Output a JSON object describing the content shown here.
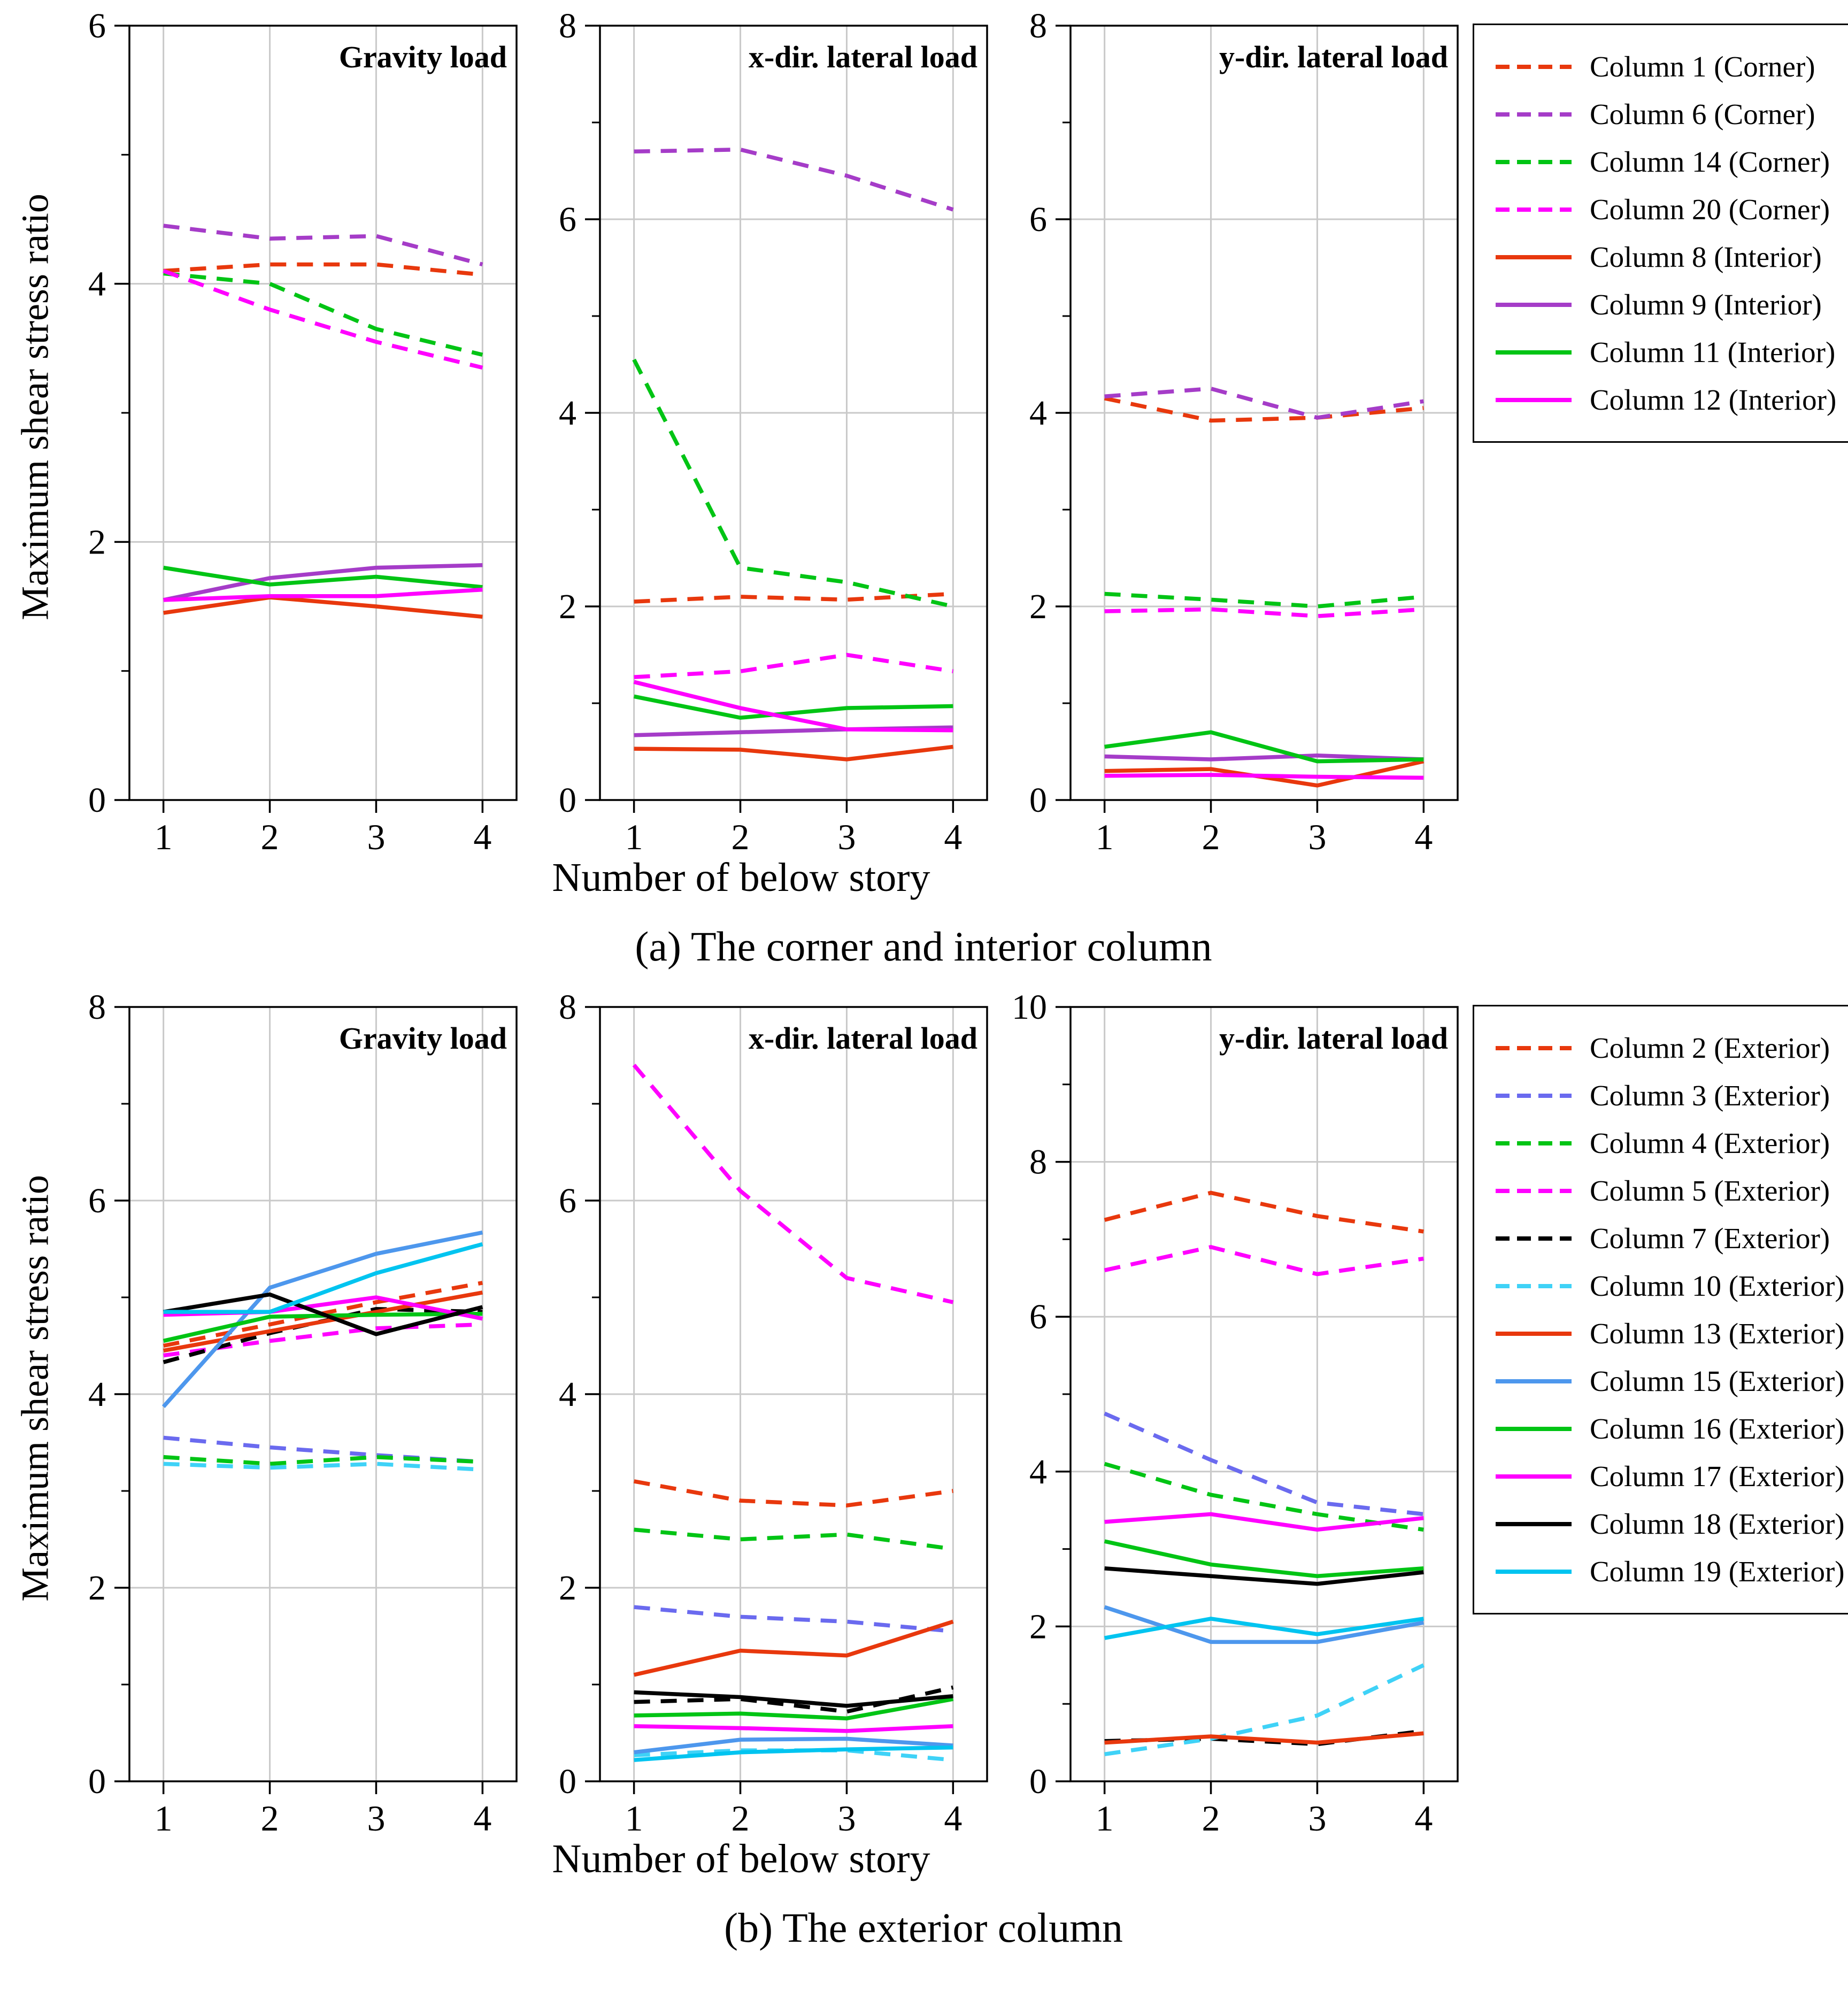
{
  "figure": {
    "ylabel": "Maximum shear stress ratio",
    "xlabel": "Number of below story"
  },
  "chart_data": {
    "type": "line",
    "x": [
      1,
      2,
      3,
      4
    ],
    "xlabel": "Number of below story",
    "ylabel": "Maximum shear stress ratio",
    "grid": "on",
    "legend_position": "right",
    "rows": [
      {
        "caption": "(a) The corner and interior column",
        "charts": [
          {
            "title": "Gravity load",
            "load": "gravity",
            "ylim": [
              0,
              6
            ],
            "ytick_step": 2
          },
          {
            "title": "x-dir. lateral load",
            "load": "xdir",
            "ylim": [
              0,
              8
            ],
            "ytick_step": 2
          },
          {
            "title": "y-dir. lateral load",
            "load": "ydir",
            "ylim": [
              0,
              8
            ],
            "ytick_step": 2
          }
        ],
        "series": [
          {
            "label": "Column 1 (Corner)",
            "color": "#E8380D",
            "dash": true,
            "values": {
              "gravity": [
                4.1,
                4.15,
                4.15,
                4.07
              ],
              "xdir": [
                2.05,
                2.1,
                2.07,
                2.13
              ],
              "ydir": [
                4.15,
                3.92,
                3.95,
                4.05
              ]
            }
          },
          {
            "label": "Column 6 (Corner)",
            "color": "#A53CC8",
            "dash": true,
            "values": {
              "gravity": [
                4.45,
                4.35,
                4.37,
                4.15
              ],
              "xdir": [
                6.7,
                6.72,
                6.45,
                6.1
              ],
              "ydir": [
                4.17,
                4.25,
                3.95,
                4.12
              ]
            }
          },
          {
            "label": "Column 14 (Corner)",
            "color": "#00C414",
            "dash": true,
            "values": {
              "gravity": [
                4.08,
                4.0,
                3.65,
                3.45
              ],
              "xdir": [
                4.55,
                2.4,
                2.25,
                2.0
              ],
              "ydir": [
                2.13,
                2.07,
                2.0,
                2.1
              ]
            }
          },
          {
            "label": "Column 20 (Corner)",
            "color": "#FF00FF",
            "dash": true,
            "values": {
              "gravity": [
                4.1,
                3.8,
                3.55,
                3.35
              ],
              "xdir": [
                1.27,
                1.33,
                1.5,
                1.33
              ],
              "ydir": [
                1.95,
                1.97,
                1.9,
                1.97
              ]
            }
          },
          {
            "label": "Column 8 (Interior)",
            "color": "#E8380D",
            "dash": false,
            "values": {
              "gravity": [
                1.45,
                1.57,
                1.5,
                1.42
              ],
              "xdir": [
                0.53,
                0.52,
                0.42,
                0.55
              ],
              "ydir": [
                0.3,
                0.32,
                0.15,
                0.4
              ]
            }
          },
          {
            "label": "Column 9 (Interior)",
            "color": "#A53CC8",
            "dash": false,
            "values": {
              "gravity": [
                1.55,
                1.72,
                1.8,
                1.82
              ],
              "xdir": [
                0.67,
                0.7,
                0.73,
                0.75
              ],
              "ydir": [
                0.45,
                0.42,
                0.46,
                0.42
              ]
            }
          },
          {
            "label": "Column 11 (Interior)",
            "color": "#00C414",
            "dash": false,
            "values": {
              "gravity": [
                1.8,
                1.67,
                1.73,
                1.65
              ],
              "xdir": [
                1.07,
                0.85,
                0.95,
                0.97
              ],
              "ydir": [
                0.55,
                0.7,
                0.4,
                0.42
              ]
            }
          },
          {
            "label": "Column 12 (Interior)",
            "color": "#FF00FF",
            "dash": false,
            "values": {
              "gravity": [
                1.55,
                1.58,
                1.58,
                1.63
              ],
              "xdir": [
                1.22,
                0.95,
                0.73,
                0.72
              ],
              "ydir": [
                0.25,
                0.26,
                0.24,
                0.23
              ]
            }
          }
        ]
      },
      {
        "caption": "(b) The exterior column",
        "charts": [
          {
            "title": "Gravity load",
            "load": "gravity",
            "ylim": [
              0,
              8
            ],
            "ytick_step": 2
          },
          {
            "title": "x-dir. lateral load",
            "load": "xdir",
            "ylim": [
              0,
              8
            ],
            "ytick_step": 2
          },
          {
            "title": "y-dir. lateral load",
            "load": "ydir",
            "ylim": [
              0,
              10
            ],
            "ytick_step": 2
          }
        ],
        "series": [
          {
            "label": "Column 2 (Exterior)",
            "color": "#E8380D",
            "dash": true,
            "values": {
              "gravity": [
                4.5,
                4.72,
                4.95,
                5.15
              ],
              "xdir": [
                3.1,
                2.9,
                2.85,
                3.0
              ],
              "ydir": [
                7.25,
                7.6,
                7.3,
                7.1
              ]
            }
          },
          {
            "label": "Column 3 (Exterior)",
            "color": "#6A6AEF",
            "dash": true,
            "values": {
              "gravity": [
                3.55,
                3.45,
                3.37,
                3.3
              ],
              "xdir": [
                1.8,
                1.7,
                1.65,
                1.55
              ],
              "ydir": [
                4.75,
                4.15,
                3.6,
                3.45
              ]
            }
          },
          {
            "label": "Column 4 (Exterior)",
            "color": "#00C414",
            "dash": true,
            "values": {
              "gravity": [
                3.35,
                3.28,
                3.35,
                3.3
              ],
              "xdir": [
                2.6,
                2.5,
                2.55,
                2.4
              ],
              "ydir": [
                4.1,
                3.7,
                3.45,
                3.25
              ]
            }
          },
          {
            "label": "Column 5 (Exterior)",
            "color": "#FF00FF",
            "dash": true,
            "values": {
              "gravity": [
                4.4,
                4.55,
                4.68,
                4.72
              ],
              "xdir": [
                7.4,
                6.1,
                5.2,
                4.95
              ],
              "ydir": [
                6.6,
                6.9,
                6.55,
                6.75
              ]
            }
          },
          {
            "label": "Column 7 (Exterior)",
            "color": "#000000",
            "dash": true,
            "values": {
              "gravity": [
                4.33,
                4.63,
                4.88,
                4.85
              ],
              "xdir": [
                0.82,
                0.85,
                0.72,
                0.97
              ],
              "ydir": [
                0.52,
                0.55,
                0.48,
                0.65
              ]
            }
          },
          {
            "label": "Column 10 (Exterior)",
            "color": "#3FD2F7",
            "dash": true,
            "values": {
              "gravity": [
                3.28,
                3.24,
                3.28,
                3.22
              ],
              "xdir": [
                0.27,
                0.32,
                0.32,
                0.22
              ],
              "ydir": [
                0.35,
                0.55,
                0.85,
                1.5
              ]
            }
          },
          {
            "label": "Column 13 (Exterior)",
            "color": "#E8380D",
            "dash": false,
            "values": {
              "gravity": [
                4.45,
                4.65,
                4.85,
                5.05
              ],
              "xdir": [
                1.1,
                1.35,
                1.3,
                1.65
              ],
              "ydir": [
                0.5,
                0.58,
                0.5,
                0.62
              ]
            }
          },
          {
            "label": "Column 15 (Exterior)",
            "color": "#4D97ED",
            "dash": false,
            "values": {
              "gravity": [
                3.87,
                5.1,
                5.45,
                5.67
              ],
              "xdir": [
                0.3,
                0.43,
                0.44,
                0.37
              ],
              "ydir": [
                2.25,
                1.8,
                1.8,
                2.05
              ]
            }
          },
          {
            "label": "Column 16 (Exterior)",
            "color": "#00C414",
            "dash": false,
            "values": {
              "gravity": [
                4.55,
                4.8,
                4.82,
                4.83
              ],
              "xdir": [
                0.68,
                0.7,
                0.65,
                0.85
              ],
              "ydir": [
                3.1,
                2.8,
                2.65,
                2.75
              ]
            }
          },
          {
            "label": "Column 17 (Exterior)",
            "color": "#FF00FF",
            "dash": false,
            "values": {
              "gravity": [
                4.82,
                4.85,
                5.0,
                4.78
              ],
              "xdir": [
                0.57,
                0.55,
                0.52,
                0.57
              ],
              "ydir": [
                3.35,
                3.45,
                3.25,
                3.4
              ]
            }
          },
          {
            "label": "Column 18 (Exterior)",
            "color": "#000000",
            "dash": false,
            "values": {
              "gravity": [
                4.85,
                5.03,
                4.62,
                4.9
              ],
              "xdir": [
                0.92,
                0.87,
                0.78,
                0.88
              ],
              "ydir": [
                2.75,
                2.65,
                2.55,
                2.7
              ]
            }
          },
          {
            "label": "Column 19 (Exterior)",
            "color": "#00C4F0",
            "dash": false,
            "values": {
              "gravity": [
                4.85,
                4.85,
                5.25,
                5.55
              ],
              "xdir": [
                0.22,
                0.3,
                0.33,
                0.35
              ],
              "ydir": [
                1.85,
                2.1,
                1.9,
                2.1
              ]
            }
          }
        ]
      }
    ]
  }
}
